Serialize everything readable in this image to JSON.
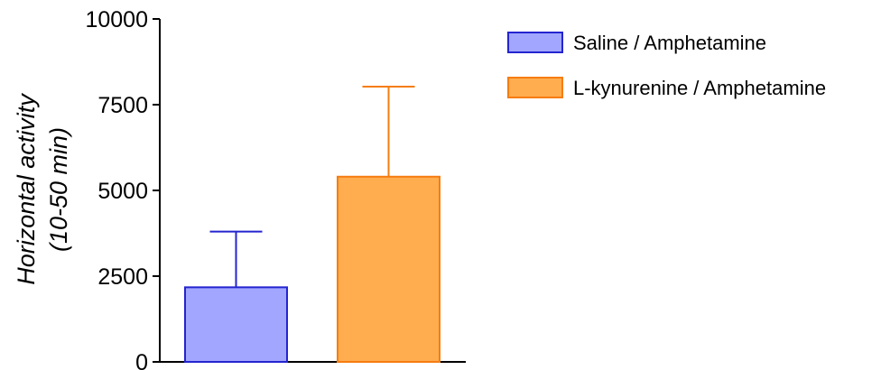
{
  "chart_data": {
    "type": "bar",
    "ylabel_line1": "Horizontal activity",
    "ylabel_line2": "(10-50 min)",
    "ylim": [
      0,
      10000
    ],
    "yticks": [
      0,
      2500,
      5000,
      7500,
      10000
    ],
    "ytick_labels": [
      "0",
      "2500",
      "5000",
      "7500",
      "10000"
    ],
    "grid": false,
    "legend_position": "top-right",
    "series": [
      {
        "name": "Saline / Amphetamine",
        "value": 2175,
        "error": 1625,
        "fill": "#a2a6ff",
        "stroke": "#2424d0"
      },
      {
        "name": "L-kynurenine / Amphetamine",
        "value": 5400,
        "error": 2625,
        "fill": "#ffad4f",
        "stroke": "#f57d10"
      }
    ]
  }
}
